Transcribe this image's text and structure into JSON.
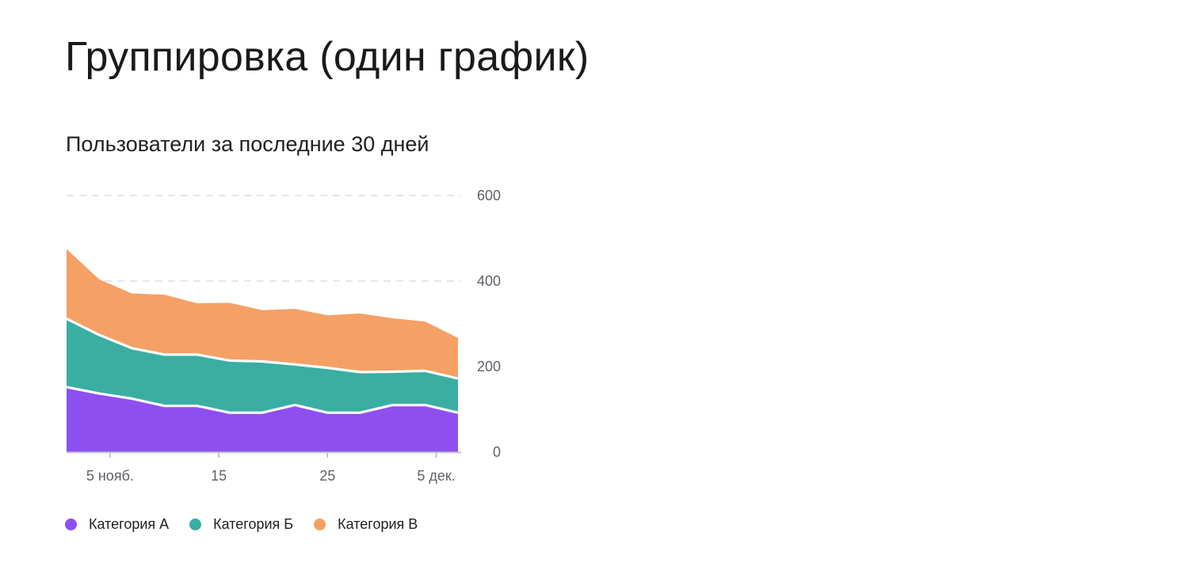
{
  "page": {
    "title": "Группировка (один график)"
  },
  "chart_data": {
    "type": "area",
    "stacked": true,
    "title": "Пользователи за последние 30 дней",
    "x": [
      "2023-11-01",
      "2023-11-04",
      "2023-11-07",
      "2023-11-10",
      "2023-11-13",
      "2023-11-16",
      "2023-11-19",
      "2023-11-22",
      "2023-11-25",
      "2023-11-28",
      "2023-12-01",
      "2023-12-04",
      "2023-12-07"
    ],
    "x_tick_labels": [
      "5 нояб.",
      "15",
      "25",
      "5 дек."
    ],
    "x_tick_dates": [
      "2023-11-05",
      "2023-11-15",
      "2023-11-25",
      "2023-12-05"
    ],
    "y_ticks": [
      0,
      200,
      400,
      600
    ],
    "ylim": [
      0,
      600
    ],
    "y_axis_side": "right",
    "grid": true,
    "legend_position": "bottom-left",
    "series": [
      {
        "name": "Категория А",
        "color": "#8e4ff0",
        "values": [
          152,
          137,
          125,
          108,
          108,
          92,
          92,
          110,
          92,
          92,
          110,
          110,
          92
        ]
      },
      {
        "name": "Категория Б",
        "color": "#3aaea2",
        "values": [
          160,
          137,
          118,
          120,
          120,
          122,
          120,
          95,
          105,
          95,
          78,
          80,
          80
        ]
      },
      {
        "name": "Категория В",
        "color": "#f5a065",
        "values": [
          163,
          130,
          128,
          140,
          120,
          135,
          120,
          130,
          123,
          137,
          125,
          115,
          95
        ]
      }
    ]
  }
}
